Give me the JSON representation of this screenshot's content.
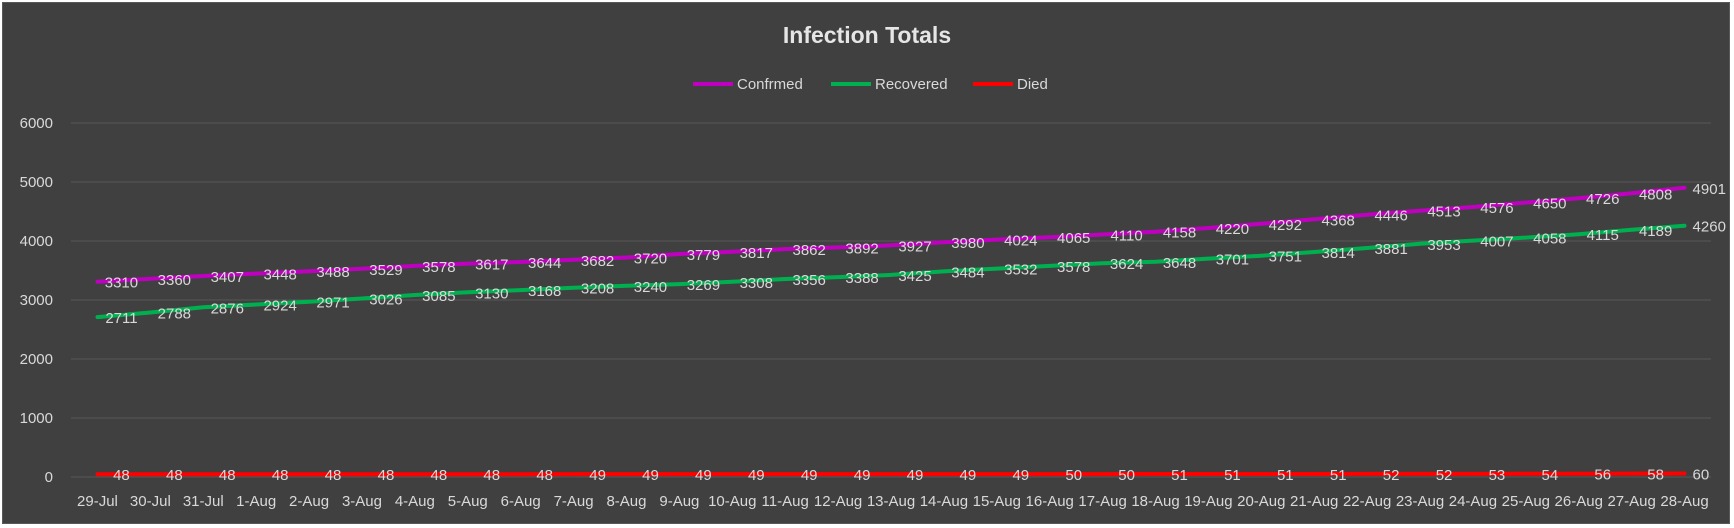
{
  "chart_data": {
    "type": "line",
    "title": "Infection Totals",
    "xlabel": "",
    "ylabel": "",
    "ylim": [
      0,
      6000
    ],
    "yticks": [
      0,
      1000,
      2000,
      3000,
      4000,
      5000,
      6000
    ],
    "grid": true,
    "legend_position": "top",
    "categories": [
      "29-Jul",
      "30-Jul",
      "31-Jul",
      "1-Aug",
      "2-Aug",
      "3-Aug",
      "4-Aug",
      "5-Aug",
      "6-Aug",
      "7-Aug",
      "8-Aug",
      "9-Aug",
      "10-Aug",
      "11-Aug",
      "12-Aug",
      "13-Aug",
      "14-Aug",
      "15-Aug",
      "16-Aug",
      "17-Aug",
      "18-Aug",
      "19-Aug",
      "20-Aug",
      "21-Aug",
      "22-Aug",
      "23-Aug",
      "24-Aug",
      "25-Aug",
      "26-Aug",
      "27-Aug",
      "28-Aug"
    ],
    "series": [
      {
        "name": "Confrmed",
        "color": "#c000c0",
        "values": [
          3310,
          3360,
          3407,
          3448,
          3488,
          3529,
          3578,
          3617,
          3644,
          3682,
          3720,
          3779,
          3817,
          3862,
          3892,
          3927,
          3980,
          4024,
          4065,
          4110,
          4158,
          4220,
          4292,
          4368,
          4446,
          4513,
          4576,
          4650,
          4726,
          4808,
          4901
        ]
      },
      {
        "name": "Recovered",
        "color": "#00b050",
        "values": [
          2711,
          2788,
          2876,
          2924,
          2971,
          3026,
          3085,
          3130,
          3168,
          3208,
          3240,
          3269,
          3308,
          3356,
          3388,
          3425,
          3484,
          3532,
          3578,
          3624,
          3648,
          3701,
          3751,
          3814,
          3881,
          3953,
          4007,
          4058,
          4115,
          4189,
          4260
        ]
      },
      {
        "name": "Died",
        "color": "#ff0000",
        "values": [
          48,
          48,
          48,
          48,
          48,
          48,
          48,
          48,
          48,
          49,
          49,
          49,
          49,
          49,
          49,
          49,
          49,
          49,
          50,
          50,
          51,
          51,
          51,
          51,
          52,
          52,
          53,
          54,
          56,
          58,
          60
        ]
      }
    ]
  },
  "colors": {
    "background": "#404040",
    "gridline": "#595959",
    "text": "#d9d9d9"
  }
}
